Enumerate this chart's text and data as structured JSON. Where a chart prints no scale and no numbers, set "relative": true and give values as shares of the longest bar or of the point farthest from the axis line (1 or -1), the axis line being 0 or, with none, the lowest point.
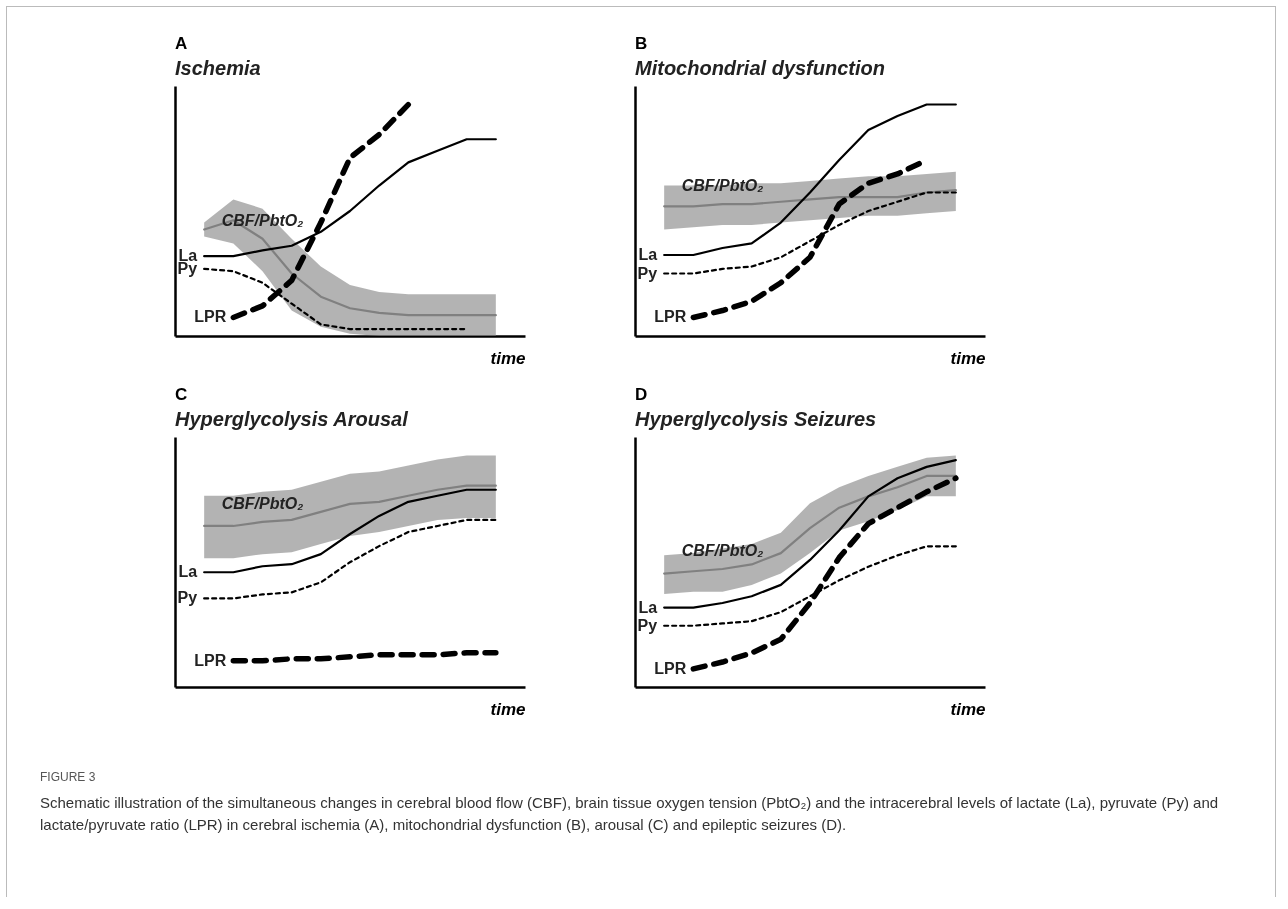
{
  "chart_data": [
    {
      "type": "line",
      "title": "A",
      "subtitle": "Ischemia",
      "xlabel": "time",
      "relative": true,
      "tick_labels": false,
      "categories": [
        null,
        null,
        null,
        null,
        null,
        null,
        null,
        null,
        null,
        null,
        null
      ],
      "series": [
        {
          "name": "CBF/PbtO₂",
          "color": "#808080",
          "values": [
            0.46,
            0.5,
            0.42,
            0.27,
            0.17,
            0.12,
            0.1,
            0.09,
            0.09,
            0.09,
            0.09
          ],
          "lower": [
            0.43,
            0.4,
            0.28,
            0.11,
            0.04,
            0.01,
            0,
            0,
            0,
            0,
            0
          ],
          "upper": [
            0.49,
            0.59,
            0.55,
            0.42,
            0.3,
            0.22,
            0.19,
            0.18,
            0.18,
            0.18,
            0.18
          ]
        },
        {
          "name": "La",
          "color": "#000000",
          "line_style": "solid",
          "values": [
            0.345,
            0.345,
            0.37,
            0.39,
            0.45,
            0.54,
            0.65,
            0.75,
            0.8,
            0.85,
            0.85
          ]
        },
        {
          "name": "Py",
          "color": "#000000",
          "line_style": "dotted",
          "values": [
            0.29,
            0.28,
            0.23,
            0.14,
            0.05,
            0.03,
            0.03,
            0.03,
            0.03,
            0.03,
            null
          ]
        },
        {
          "name": "LPR",
          "color": "#000000",
          "line_style": "dashed",
          "values": [
            null,
            0.08,
            0.13,
            0.24,
            0.49,
            0.77,
            0.87,
            1,
            null,
            null,
            null
          ]
        }
      ]
    },
    {
      "type": "line",
      "title": "B",
      "subtitle": "Mitochondrial dysfunction",
      "xlabel": "time",
      "relative": true,
      "tick_labels": false,
      "categories": [
        null,
        null,
        null,
        null,
        null,
        null,
        null,
        null,
        null,
        null,
        null
      ],
      "series": [
        {
          "name": "CBF/PbtO₂",
          "color": "#808080",
          "values": [
            0.56,
            0.56,
            0.57,
            0.57,
            0.58,
            0.59,
            0.6,
            0.6,
            0.6,
            0.62,
            0.63
          ],
          "lower": [
            0.46,
            0.47,
            0.48,
            0.48,
            0.49,
            0.5,
            0.51,
            0.52,
            0.52,
            0.53,
            0.54
          ],
          "upper": [
            0.65,
            0.65,
            0.65,
            0.66,
            0.66,
            0.67,
            0.68,
            0.69,
            0.69,
            0.7,
            0.71
          ]
        },
        {
          "name": "La",
          "color": "#000000",
          "line_style": "solid",
          "values": [
            0.35,
            0.35,
            0.38,
            0.4,
            0.49,
            0.62,
            0.76,
            0.89,
            0.95,
            1,
            1
          ]
        },
        {
          "name": "Py",
          "color": "#000000",
          "line_style": "dotted",
          "values": [
            0.27,
            0.27,
            0.29,
            0.3,
            0.34,
            0.41,
            0.48,
            0.54,
            0.58,
            0.62,
            0.62
          ]
        },
        {
          "name": "LPR",
          "color": "#000000",
          "line_style": "dashed",
          "values": [
            null,
            0.08,
            0.11,
            0.15,
            0.23,
            0.34,
            0.57,
            0.66,
            0.7,
            0.76,
            null
          ]
        }
      ]
    },
    {
      "type": "line",
      "title": "C",
      "subtitle": "Hyperglycolysis Arousal",
      "xlabel": "time",
      "relative": true,
      "tick_labels": false,
      "categories": [
        null,
        null,
        null,
        null,
        null,
        null,
        null,
        null,
        null,
        null,
        null
      ],
      "series": [
        {
          "name": "CBF/PbtO₂",
          "color": "#808080",
          "values": [
            0.8,
            0.8,
            0.82,
            0.83,
            0.87,
            0.91,
            0.92,
            0.95,
            0.98,
            1,
            1
          ],
          "lower": [
            0.64,
            0.64,
            0.66,
            0.67,
            0.71,
            0.75,
            0.77,
            0.8,
            0.83,
            0.84,
            0.84
          ],
          "upper": [
            0.95,
            0.95,
            0.97,
            0.98,
            1.02,
            1.06,
            1.07,
            1.1,
            1.13,
            1.15,
            1.15
          ]
        },
        {
          "name": "La",
          "color": "#000000",
          "line_style": "solid",
          "values": [
            0.57,
            0.57,
            0.6,
            0.61,
            0.66,
            0.76,
            0.85,
            0.92,
            0.95,
            0.98,
            0.98
          ]
        },
        {
          "name": "Py",
          "color": "#000000",
          "line_style": "dotted",
          "values": [
            0.44,
            0.44,
            0.46,
            0.47,
            0.52,
            0.62,
            0.7,
            0.77,
            0.8,
            0.83,
            0.83
          ]
        },
        {
          "name": "LPR",
          "color": "#000000",
          "line_style": "dashed",
          "values": [
            null,
            0.13,
            0.13,
            0.14,
            0.14,
            0.15,
            0.16,
            0.16,
            0.16,
            0.17,
            0.17
          ]
        }
      ]
    },
    {
      "type": "line",
      "title": "D",
      "subtitle": "Hyperglycolysis Seizures",
      "xlabel": "time",
      "relative": true,
      "tick_labels": false,
      "categories": [
        null,
        null,
        null,
        null,
        null,
        null,
        null,
        null,
        null,
        null,
        null
      ],
      "series": [
        {
          "name": "CBF/PbtO₂",
          "color": "#808080",
          "values": [
            0.5,
            0.51,
            0.52,
            0.54,
            0.59,
            0.7,
            0.79,
            0.84,
            0.88,
            0.93,
            0.93
          ],
          "lower": [
            0.41,
            0.42,
            0.42,
            0.45,
            0.5,
            0.59,
            0.69,
            0.73,
            0.78,
            0.84,
            0.84
          ],
          "upper": [
            0.58,
            0.59,
            0.61,
            0.63,
            0.68,
            0.81,
            0.88,
            0.93,
            0.97,
            1.01,
            1.02
          ]
        },
        {
          "name": "La",
          "color": "#000000",
          "line_style": "solid",
          "values": [
            0.35,
            0.35,
            0.37,
            0.4,
            0.45,
            0.56,
            0.69,
            0.84,
            0.92,
            0.97,
            1
          ]
        },
        {
          "name": "Py",
          "color": "#000000",
          "line_style": "dotted",
          "values": [
            0.27,
            0.27,
            0.28,
            0.29,
            0.33,
            0.4,
            0.47,
            0.53,
            0.58,
            0.62,
            0.62
          ]
        },
        {
          "name": "LPR",
          "color": "#000000",
          "line_style": "dashed",
          "values": [
            null,
            0.08,
            0.11,
            0.15,
            0.21,
            0.37,
            0.57,
            0.72,
            0.79,
            0.86,
            0.92
          ]
        }
      ]
    },
    {
      "type": "other",
      "title": "FIGURE 3",
      "annotations": [
        "Schematic illustration of the simultaneous changes in cerebral blood flow (CBF), brain tissue oxygen tension (PbtO₂) and the intracerebral levels of lactate (La), pyruvate (Py) and lactate/pyruvate ratio (LPR) in cerebral ischemia (A), mitochondrial dysfunction (B), arousal (C) and epileptic seizures (D)."
      ]
    }
  ]
}
